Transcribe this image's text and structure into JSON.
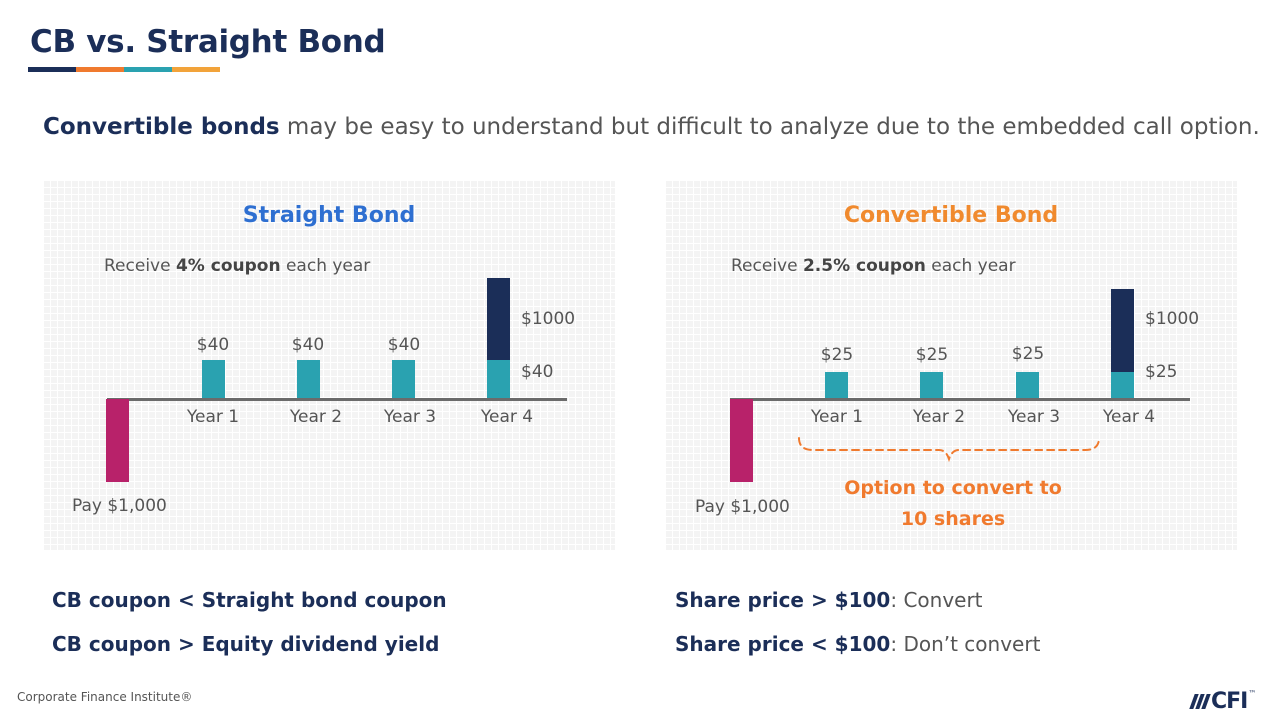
{
  "title": "CB vs. Straight Bond",
  "title_bar_colors": [
    "#1b2e58",
    "#f07a2e",
    "#2aa2b0",
    "#f2a33a"
  ],
  "intro": {
    "bold": "Convertible bonds",
    "rest": " may be easy to understand but difficult to analyze due to the embedded call option."
  },
  "straight": {
    "title": "Straight Bond",
    "title_color": "#2e6fd1",
    "receive_prefix": "Receive ",
    "receive_bold": "4% coupon",
    "receive_suffix": " each year",
    "years": [
      "Year 1",
      "Year 2",
      "Year 3",
      "Year 4"
    ],
    "coupon_labels": [
      "$40",
      "$40",
      "$40"
    ],
    "principal_label": "$1000",
    "final_coupon_label": "$40",
    "pay_label": "Pay $1,000"
  },
  "convertible": {
    "title": "Convertible Bond",
    "title_color": "#f08a2e",
    "receive_prefix": "Receive ",
    "receive_bold": "2.5% coupon",
    "receive_suffix": " each year",
    "years": [
      "Year 1",
      "Year 2",
      "Year 3",
      "Year 4"
    ],
    "coupon_labels": [
      "$25",
      "$25",
      "$25"
    ],
    "principal_label": "$1000",
    "final_coupon_label": "$25",
    "pay_label": "Pay $1,000",
    "option_line1": "Option to convert to",
    "option_line2": "10 shares"
  },
  "colors": {
    "coupon": "#2aa2b0",
    "principal": "#1b2e58",
    "payment": "#b8226a",
    "brace": "#f07a2e"
  },
  "notes_left": [
    {
      "bold": "CB coupon < Straight bond coupon",
      "rest": ""
    },
    {
      "bold": "CB coupon > Equity dividend  yield",
      "rest": ""
    }
  ],
  "notes_right": [
    {
      "bold": "Share price > $100",
      "rest": ": Convert"
    },
    {
      "bold": "Share price < $100",
      "rest": ": Don’t convert"
    }
  ],
  "footer": "Corporate Finance Institute®",
  "logo": {
    "text": "CFI",
    "tm": "™"
  }
}
